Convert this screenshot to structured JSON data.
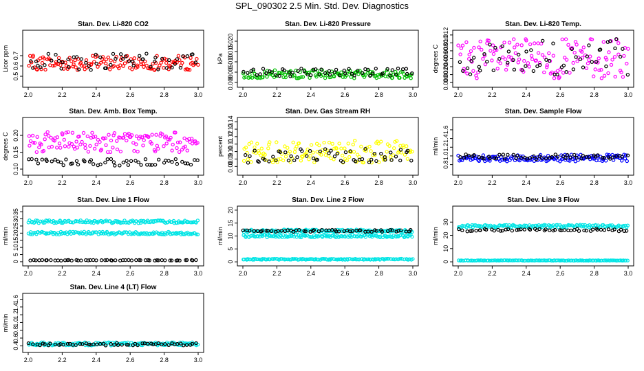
{
  "title": "SPL_090302  2.5 Min. Std. Dev. Diagnostics",
  "chart_data": [
    {
      "type": "scatter",
      "title": "Stan. Dev. Li-820 CO2",
      "ylabel": "Licor ppm",
      "xlim": [
        2.0,
        3.0
      ],
      "ylim": [
        0.42,
        0.92
      ],
      "xticks": [
        "2.0",
        "2.2",
        "2.4",
        "2.6",
        "2.8",
        "3.0"
      ],
      "yticks": [
        0.5,
        0.6,
        0.7
      ],
      "ytick_labels": [
        "0.5",
        "0.6",
        "0.7"
      ],
      "series": [
        {
          "color": "#ff0000",
          "base": 0.63,
          "spread": 0.07
        },
        {
          "color": "#000000",
          "base": 0.64,
          "spread": 0.08
        }
      ]
    },
    {
      "type": "scatter",
      "title": "Stan. Dev. Li-820 Pressure",
      "ylabel": "kPa",
      "xlim": [
        2.0,
        3.0
      ],
      "ylim": [
        -0.001,
        0.024
      ],
      "xticks": [
        "2.0",
        "2.2",
        "2.4",
        "2.6",
        "2.8",
        "3.0"
      ],
      "yticks": [
        0.0,
        0.005,
        0.01,
        0.015,
        0.02
      ],
      "ytick_labels": [
        "0.000",
        "0.005",
        "0.010",
        "0.015",
        "0.020"
      ],
      "series": [
        {
          "color": "#00c000",
          "base": 0.004,
          "spread": 0.002
        },
        {
          "color": "#000000",
          "base": 0.005,
          "spread": 0.002
        }
      ]
    },
    {
      "type": "scatter",
      "title": "Stan. Dev. Li-820 Temp.",
      "ylabel": "degrees C",
      "xlim": [
        2.0,
        3.0
      ],
      "ylim": [
        -0.0005,
        0.0125
      ],
      "xticks": [
        "2.0",
        "2.2",
        "2.4",
        "2.6",
        "2.8",
        "3.0"
      ],
      "yticks": [
        0.0,
        0.002,
        0.004,
        0.006,
        0.008,
        0.01,
        0.012
      ],
      "ytick_labels": [
        "0.000",
        "0.002",
        "0.004",
        "0.006",
        "0.008",
        "0.010",
        "0.012"
      ],
      "series": [
        {
          "color": "#ff00ff",
          "base": 0.006,
          "spread": 0.005
        },
        {
          "color": "#000000",
          "base": 0.006,
          "spread": 0.005
        }
      ]
    },
    {
      "type": "scatter",
      "title": "Stan. Dev. Amb. Box Temp.",
      "ylabel": "degrees C",
      "xlim": [
        2.0,
        3.0
      ],
      "ylim": [
        0.09,
        0.245
      ],
      "xticks": [
        "2.0",
        "2.2",
        "2.4",
        "2.6",
        "2.8",
        "3.0"
      ],
      "yticks": [
        0.1,
        0.15,
        0.2
      ],
      "ytick_labels": [
        "0.10",
        "0.15",
        "0.20"
      ],
      "series": [
        {
          "color": "#ff00ff",
          "base": 0.18,
          "spread": 0.03
        },
        {
          "color": "#000000",
          "base": 0.12,
          "spread": 0.01
        }
      ]
    },
    {
      "type": "scatter",
      "title": "Stan. Dev. Gas Stream RH",
      "ylabel": "percent",
      "xlim": [
        2.0,
        3.0
      ],
      "ylim": [
        0.072,
        0.142
      ],
      "xticks": [
        "2.0",
        "2.2",
        "2.4",
        "2.6",
        "2.8",
        "3.0"
      ],
      "yticks": [
        0.08,
        0.09,
        0.1,
        0.11,
        0.12,
        0.13,
        0.14
      ],
      "ytick_labels": [
        "0.08",
        "0.09",
        "0.10",
        "0.11",
        "0.12",
        "0.13",
        "0.14"
      ],
      "series": [
        {
          "color": "#ffff00",
          "base": 0.1,
          "spread": 0.015
        },
        {
          "color": "#000000",
          "base": 0.095,
          "spread": 0.01
        }
      ]
    },
    {
      "type": "scatter",
      "title": "Stan. Dev. Sample Flow",
      "ylabel": "ml/min",
      "xlim": [
        2.0,
        3.0
      ],
      "ylim": [
        0.62,
        1.82
      ],
      "xticks": [
        "2.0",
        "2.2",
        "2.4",
        "2.6",
        "2.8",
        "3.0"
      ],
      "yticks": [
        0.8,
        1.0,
        1.2,
        1.4,
        1.6
      ],
      "ytick_labels": [
        "0.8",
        "1.0",
        "1.2",
        "1.4",
        "1.6"
      ],
      "series": [
        {
          "color": "#0000ff",
          "base": 0.95,
          "spread": 0.08
        },
        {
          "color": "#000000",
          "base": 0.98,
          "spread": 0.06
        }
      ]
    },
    {
      "type": "scatter",
      "title": "Stan. Dev. Line 1 Flow",
      "ylabel": "ml/min",
      "xlim": [
        2.0,
        3.0
      ],
      "ylim": [
        -1,
        37
      ],
      "xticks": [
        "2.0",
        "2.2",
        "2.4",
        "2.6",
        "2.8",
        "3.0"
      ],
      "yticks": [
        0,
        5,
        10,
        15,
        20,
        25,
        30,
        35
      ],
      "ytick_labels": [
        "0",
        "5",
        "10",
        "15",
        "20",
        "25",
        "30",
        "35"
      ],
      "series": [
        {
          "color": "#00e5e5",
          "base": 28,
          "spread": 1
        },
        {
          "color": "#00e5e5",
          "base": 20,
          "spread": 1
        },
        {
          "color": "#000000",
          "base": 1,
          "spread": 0.2
        }
      ]
    },
    {
      "type": "scatter",
      "title": "Stan. Dev. Line 2 Flow",
      "ylabel": "ml/min",
      "xlim": [
        2.0,
        3.0
      ],
      "ylim": [
        -0.5,
        20.5
      ],
      "xticks": [
        "2.0",
        "2.2",
        "2.4",
        "2.6",
        "2.8",
        "3.0"
      ],
      "yticks": [
        0,
        5,
        10,
        15,
        20
      ],
      "ytick_labels": [
        "0",
        "5",
        "10",
        "15",
        "20"
      ],
      "series": [
        {
          "color": "#00e5e5",
          "base": 12,
          "spread": 0.5
        },
        {
          "color": "#00e5e5",
          "base": 10,
          "spread": 0.5
        },
        {
          "color": "#00e5e5",
          "base": 1,
          "spread": 0.2
        },
        {
          "color": "#000000",
          "base": 12,
          "spread": 0.4
        }
      ]
    },
    {
      "type": "scatter",
      "title": "Stan. Dev. Line 3 Flow",
      "ylabel": "ml/min",
      "xlim": [
        2.0,
        3.0
      ],
      "ylim": [
        -1,
        40
      ],
      "xticks": [
        "2.0",
        "2.2",
        "2.4",
        "2.6",
        "2.8",
        "3.0"
      ],
      "yticks": [
        0,
        10,
        20,
        30
      ],
      "ytick_labels": [
        "0",
        "10",
        "20",
        "30"
      ],
      "series": [
        {
          "color": "#00e5e5",
          "base": 27,
          "spread": 1
        },
        {
          "color": "#00e5e5",
          "base": 1,
          "spread": 0.2
        },
        {
          "color": "#000000",
          "base": 24,
          "spread": 1
        }
      ]
    },
    {
      "type": "scatter",
      "title": "Stan. Dev. Line 4 (LT) Flow",
      "ylabel": "ml/min",
      "xlim": [
        2.0,
        3.0
      ],
      "ylim": [
        0.3,
        1.68
      ],
      "xticks": [
        "2.0",
        "2.2",
        "2.4",
        "2.6",
        "2.8",
        "3.0"
      ],
      "yticks": [
        0.4,
        0.6,
        0.8,
        1.0,
        1.2,
        1.4,
        1.6
      ],
      "ytick_labels": [
        "0.4",
        "0.6",
        "0.8",
        "1.0",
        "1.2",
        "1.4",
        "1.6"
      ],
      "series": [
        {
          "color": "#00e5e5",
          "base": 0.45,
          "spread": 0.04
        },
        {
          "color": "#000000",
          "base": 0.44,
          "spread": 0.03
        }
      ]
    }
  ]
}
